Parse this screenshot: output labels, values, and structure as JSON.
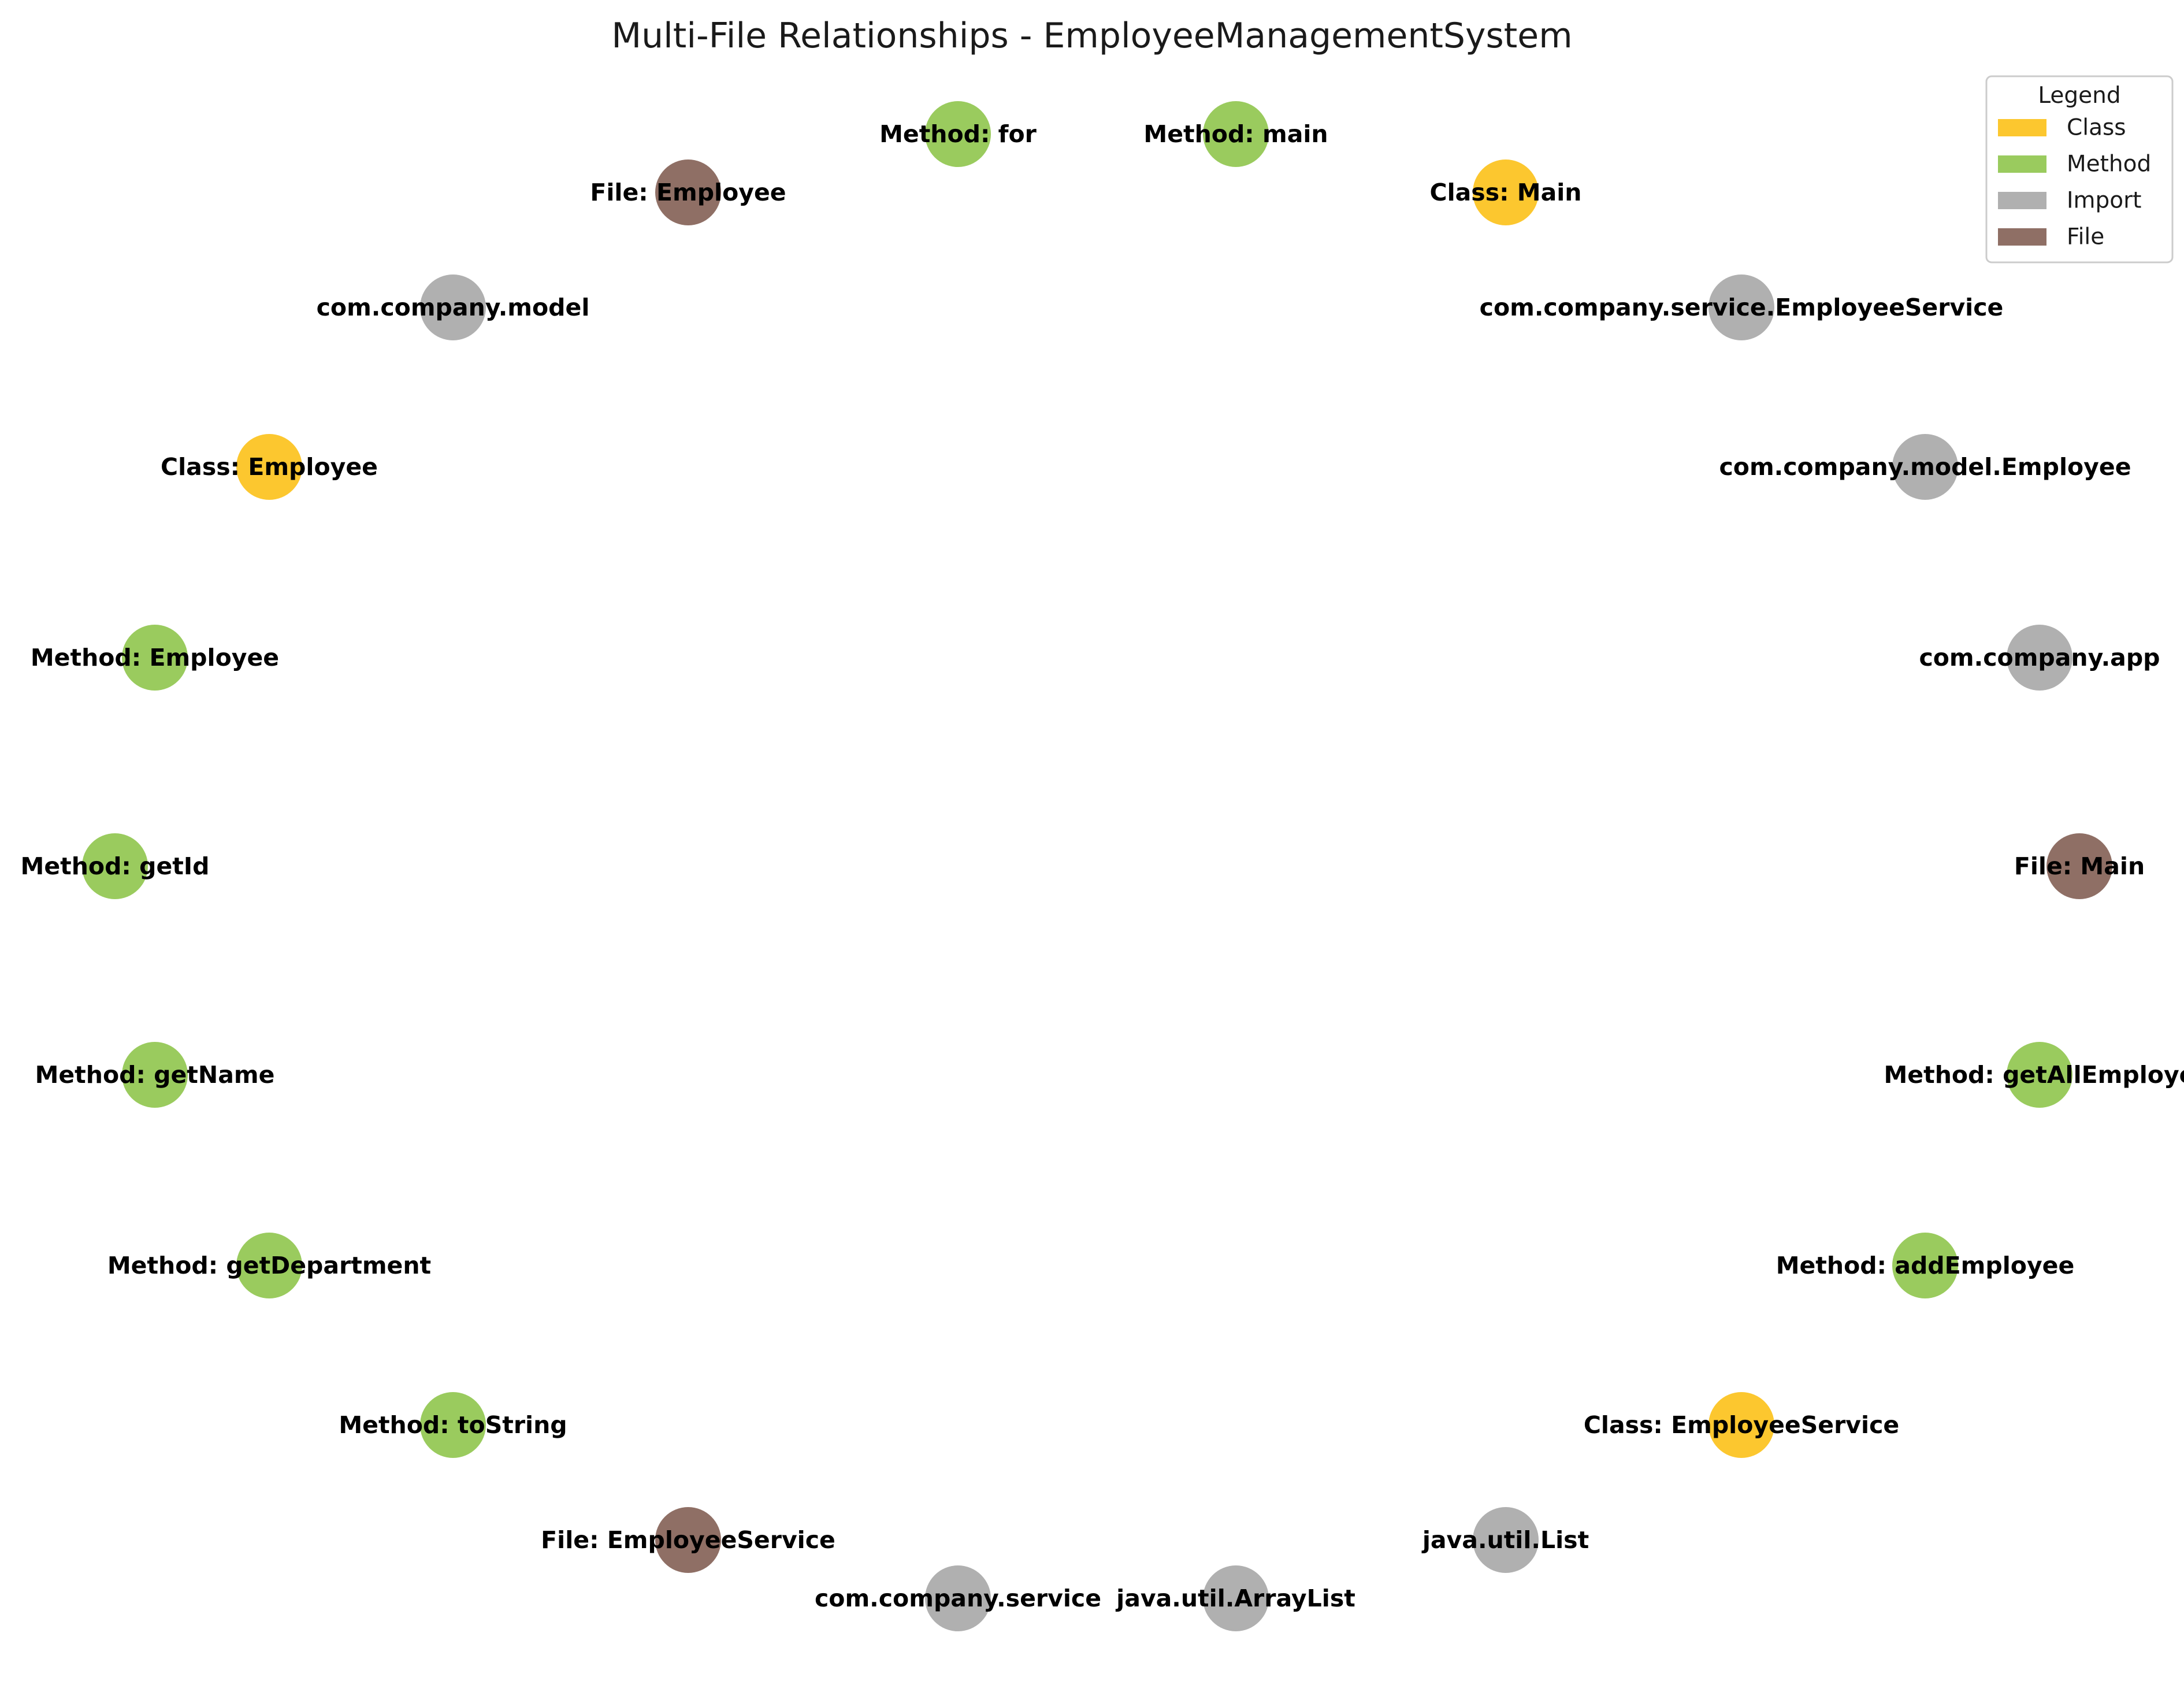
{
  "title": "Multi-File Relationships - EmployeeManagementSystem",
  "legend": {
    "title": "Legend",
    "items": [
      {
        "key": "class",
        "label": "Class",
        "color": "#fcc72f"
      },
      {
        "key": "method",
        "label": "Method",
        "color": "#9acb5e"
      },
      {
        "key": "import",
        "label": "Import",
        "color": "#b0b0b0"
      },
      {
        "key": "file",
        "label": "File",
        "color": "#8f6f65"
      }
    ]
  },
  "nodes": [
    {
      "label": "Method: for",
      "type": "method"
    },
    {
      "label": "Method: main",
      "type": "method"
    },
    {
      "label": "File: Employee",
      "type": "file"
    },
    {
      "label": "Class: Main",
      "type": "class"
    },
    {
      "label": "com.company.model",
      "type": "import"
    },
    {
      "label": "com.company.service.EmployeeService",
      "type": "import"
    },
    {
      "label": "Class: Employee",
      "type": "class"
    },
    {
      "label": "com.company.model.Employee",
      "type": "import"
    },
    {
      "label": "Method: Employee",
      "type": "method"
    },
    {
      "label": "com.company.app",
      "type": "import"
    },
    {
      "label": "Method: getId",
      "type": "method"
    },
    {
      "label": "File: Main",
      "type": "file"
    },
    {
      "label": "Method: getName",
      "type": "method"
    },
    {
      "label": "Method: getAllEmploye",
      "type": "method"
    },
    {
      "label": "Method: getDepartment",
      "type": "method"
    },
    {
      "label": "Method: addEmployee",
      "type": "method"
    },
    {
      "label": "Method: toString",
      "type": "method"
    },
    {
      "label": "Class: EmployeeService",
      "type": "class"
    },
    {
      "label": "File: EmployeeService",
      "type": "file"
    },
    {
      "label": "java.util.List",
      "type": "import"
    },
    {
      "label": "com.company.service",
      "type": "import"
    },
    {
      "label": "java.util.ArrayList",
      "type": "import"
    }
  ]
}
